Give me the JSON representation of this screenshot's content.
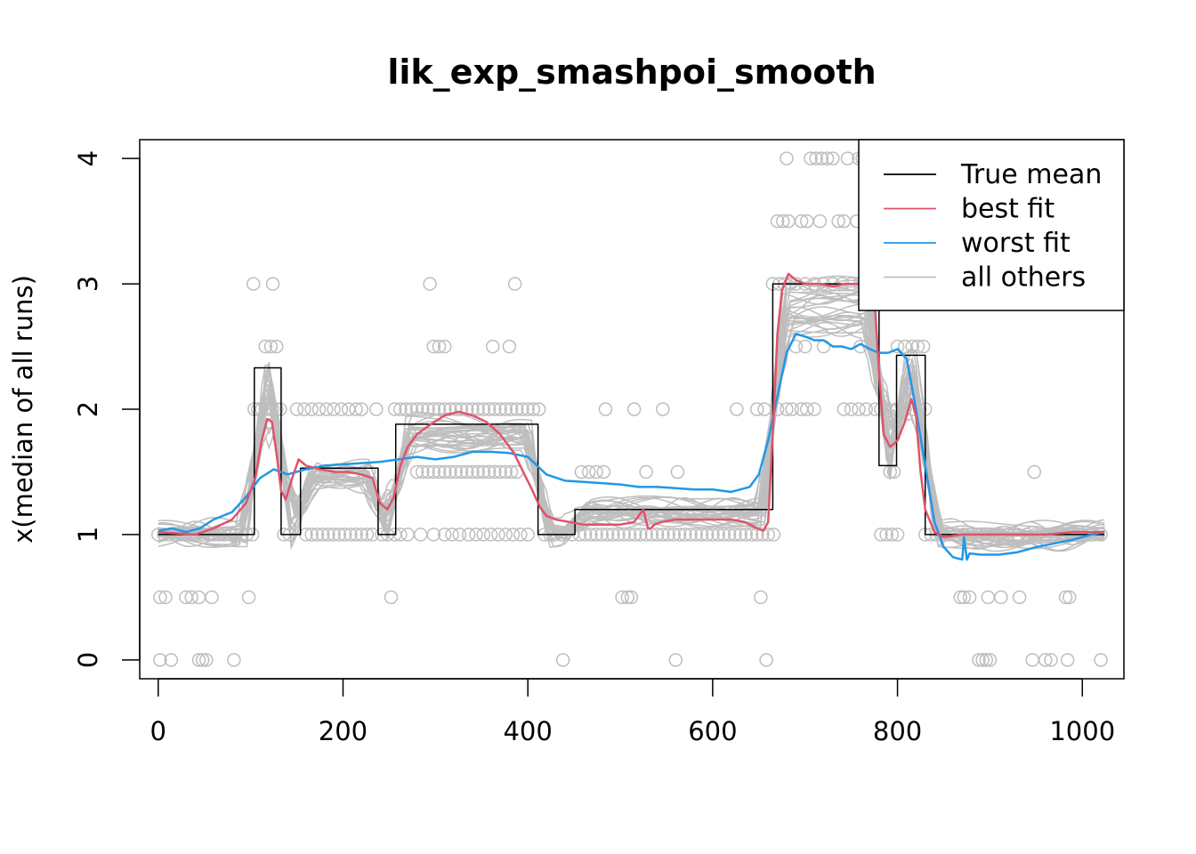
{
  "chart_data": {
    "type": "line",
    "title": "lik_exp_smashpoi_smooth",
    "xlabel": "",
    "ylabel": "x(median of all runs)",
    "xlim": [
      -20,
      1045
    ],
    "ylim": [
      -0.15,
      4.15
    ],
    "xticks": [
      0,
      200,
      400,
      600,
      800,
      1000
    ],
    "yticks": [
      0,
      1,
      2,
      3,
      4
    ],
    "legend": {
      "position": "top-right",
      "entries": [
        {
          "label": "True mean",
          "color": "#000000"
        },
        {
          "label": "best fit",
          "color": "#DF536B"
        },
        {
          "label": "worst fit",
          "color": "#2297E6"
        },
        {
          "label": "all others",
          "color": "#BEBEBE"
        }
      ]
    },
    "series": [
      {
        "name": "True mean",
        "color": "#000000",
        "style": "step",
        "x": [
          0,
          104,
          104,
          133,
          133,
          154,
          154,
          238,
          238,
          257,
          257,
          411,
          411,
          451,
          451,
          665,
          665,
          780,
          780,
          799,
          799,
          830,
          830,
          1024
        ],
        "y": [
          1,
          1,
          2.33,
          2.33,
          1,
          1,
          1.53,
          1.53,
          1,
          1,
          1.88,
          1.88,
          1,
          1,
          1.2,
          1.2,
          3,
          3,
          1.55,
          1.55,
          2.43,
          2.43,
          1,
          1
        ]
      },
      {
        "name": "best fit",
        "color": "#DF536B",
        "x": [
          0,
          20,
          40,
          60,
          80,
          95,
          105,
          112,
          118,
          123,
          128,
          133,
          138,
          145,
          152,
          160,
          175,
          190,
          205,
          220,
          232,
          240,
          248,
          255,
          262,
          270,
          280,
          295,
          310,
          325,
          340,
          355,
          370,
          385,
          395,
          405,
          413,
          420,
          430,
          445,
          460,
          480,
          500,
          515,
          525,
          530,
          533,
          537,
          545,
          560,
          580,
          600,
          620,
          635,
          648,
          655,
          660,
          665,
          670,
          675,
          682,
          690,
          700,
          715,
          730,
          745,
          760,
          768,
          775,
          780,
          785,
          792,
          800,
          808,
          815,
          820,
          825,
          830,
          840,
          850,
          870,
          900,
          930,
          960,
          990,
          1024
        ],
        "y": [
          1.02,
          1.01,
          1.0,
          1.05,
          1.12,
          1.25,
          1.45,
          1.75,
          1.92,
          1.9,
          1.65,
          1.35,
          1.28,
          1.45,
          1.6,
          1.55,
          1.52,
          1.5,
          1.5,
          1.48,
          1.45,
          1.25,
          1.2,
          1.3,
          1.55,
          1.7,
          1.8,
          1.88,
          1.95,
          1.98,
          1.95,
          1.9,
          1.8,
          1.65,
          1.5,
          1.35,
          1.22,
          1.15,
          1.12,
          1.1,
          1.08,
          1.08,
          1.08,
          1.1,
          1.2,
          1.05,
          1.05,
          1.08,
          1.1,
          1.12,
          1.12,
          1.12,
          1.12,
          1.1,
          1.05,
          1.03,
          1.1,
          1.8,
          2.6,
          2.95,
          3.08,
          3.03,
          3.0,
          3.0,
          2.98,
          3.0,
          3.0,
          3.08,
          2.9,
          2.3,
          1.8,
          1.7,
          1.75,
          1.9,
          2.08,
          1.95,
          1.5,
          1.2,
          1.02,
          0.98,
          1.0,
          1.0,
          1.0,
          1.0,
          1.02,
          1.02
        ]
      },
      {
        "name": "worst fit",
        "color": "#2297E6",
        "x": [
          0,
          15,
          30,
          45,
          60,
          80,
          95,
          110,
          125,
          140,
          160,
          180,
          200,
          220,
          240,
          260,
          280,
          300,
          320,
          340,
          360,
          380,
          400,
          410,
          420,
          440,
          460,
          480,
          500,
          520,
          540,
          560,
          580,
          600,
          620,
          630,
          640,
          650,
          660,
          670,
          680,
          690,
          700,
          710,
          720,
          730,
          740,
          750,
          760,
          770,
          780,
          790,
          800,
          810,
          820,
          830,
          840,
          850,
          860,
          870,
          872,
          875,
          878,
          890,
          910,
          930,
          950,
          970,
          990,
          1010,
          1024
        ],
        "y": [
          1.03,
          1.05,
          1.02,
          1.05,
          1.12,
          1.18,
          1.3,
          1.45,
          1.52,
          1.48,
          1.52,
          1.55,
          1.56,
          1.57,
          1.58,
          1.6,
          1.62,
          1.6,
          1.62,
          1.66,
          1.66,
          1.65,
          1.62,
          1.55,
          1.48,
          1.43,
          1.42,
          1.41,
          1.4,
          1.38,
          1.38,
          1.37,
          1.36,
          1.36,
          1.34,
          1.36,
          1.38,
          1.48,
          1.75,
          2.1,
          2.45,
          2.6,
          2.58,
          2.55,
          2.55,
          2.5,
          2.5,
          2.48,
          2.52,
          2.48,
          2.45,
          2.45,
          2.48,
          2.4,
          2.0,
          1.55,
          1.1,
          0.9,
          0.82,
          0.8,
          0.98,
          0.8,
          0.85,
          0.84,
          0.84,
          0.86,
          0.9,
          0.93,
          0.96,
          1.0,
          1.02
        ]
      }
    ],
    "other_runs_description": "all others",
    "points": {
      "color": "#BEBEBE",
      "groups": [
        {
          "y": 4,
          "x": [
            680,
            706,
            712,
            718,
            724,
            730,
            746,
            758,
            762,
            766
          ]
        },
        {
          "y": 3.5,
          "x": [
            670,
            676,
            682,
            696,
            702,
            716,
            736,
            742,
            756
          ]
        },
        {
          "y": 3,
          "x": [
            103,
            124,
            294,
            386,
            665,
            672,
            678,
            684,
            690,
            700,
            710,
            720,
            730,
            740,
            750,
            760,
            770,
            776
          ]
        },
        {
          "y": 2.5,
          "x": [
            116,
            122,
            128,
            298,
            304,
            310,
            362,
            380,
            690,
            700,
            720,
            760,
            800,
            808,
            816,
            822,
            828
          ]
        },
        {
          "y": 2,
          "x": [
            104,
            108,
            112,
            116,
            120,
            124,
            128,
            132,
            150,
            158,
            166,
            174,
            182,
            190,
            198,
            206,
            214,
            220,
            236,
            256,
            262,
            268,
            274,
            280,
            286,
            292,
            298,
            304,
            310,
            316,
            322,
            328,
            334,
            340,
            346,
            352,
            358,
            364,
            370,
            376,
            382,
            388,
            394,
            400,
            406,
            412,
            484,
            515,
            546,
            626,
            648,
            656,
            670,
            680,
            686,
            696,
            702,
            710,
            742,
            750,
            758,
            766,
            776,
            782,
            800,
            808,
            816,
            824,
            830
          ]
        },
        {
          "y": 1.5,
          "x": [
            228,
            280,
            286,
            292,
            298,
            304,
            310,
            316,
            322,
            328,
            334,
            340,
            346,
            352,
            358,
            364,
            370,
            376,
            382,
            388,
            458,
            466,
            474,
            482,
            528,
            562,
            792,
            796,
            948
          ]
        },
        {
          "y": 1,
          "x": [
            0,
            6,
            12,
            18,
            24,
            30,
            36,
            42,
            48,
            54,
            60,
            66,
            72,
            78,
            84,
            90,
            96,
            102,
            136,
            142,
            160,
            166,
            172,
            178,
            184,
            190,
            196,
            202,
            208,
            214,
            220,
            226,
            232,
            242,
            248,
            256,
            262,
            270,
            284,
            298,
            310,
            318,
            326,
            336,
            344,
            352,
            360,
            368,
            376,
            384,
            392,
            400,
            418,
            424,
            436,
            448,
            456,
            462,
            468,
            474,
            480,
            486,
            492,
            498,
            504,
            510,
            516,
            522,
            528,
            534,
            540,
            546,
            552,
            558,
            564,
            570,
            576,
            582,
            588,
            594,
            600,
            606,
            612,
            618,
            624,
            630,
            636,
            642,
            648,
            654,
            660,
            666,
            782,
            788,
            794,
            800,
            830,
            836,
            842,
            848,
            856,
            864,
            872,
            880,
            890,
            900,
            910,
            920,
            930,
            940,
            950,
            960,
            970,
            980,
            990,
            1000,
            1010,
            1020
          ]
        },
        {
          "y": 0.5,
          "x": [
            2,
            8,
            30,
            36,
            44,
            58,
            98,
            252,
            502,
            508,
            512,
            652,
            868,
            872,
            878,
            898,
            912,
            932,
            982,
            986
          ]
        },
        {
          "y": 0,
          "x": [
            2,
            14,
            44,
            48,
            52,
            82,
            438,
            560,
            658,
            888,
            892,
            896,
            900,
            946,
            960,
            966,
            984,
            1020
          ]
        }
      ]
    }
  }
}
